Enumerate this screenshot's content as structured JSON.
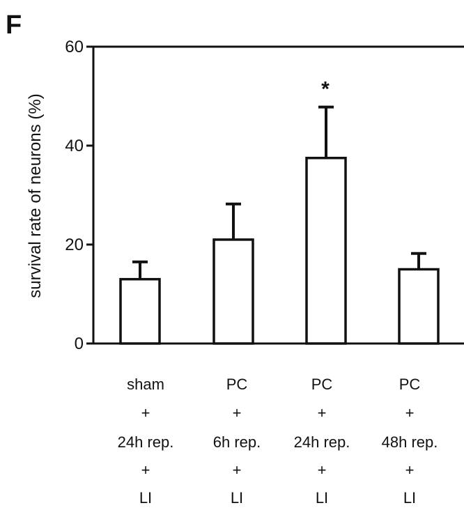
{
  "panel_label": "F",
  "chart_data": {
    "type": "bar",
    "ylabel": "survival rate of neurons (%)",
    "xlabel": "",
    "ylim": [
      0,
      60
    ],
    "yticks": [
      0,
      20,
      40,
      60
    ],
    "grid": false,
    "categories": [
      [
        "sham",
        "+",
        "24h rep.",
        "+",
        "LI"
      ],
      [
        "PC",
        "+",
        "6h rep.",
        "+",
        "LI"
      ],
      [
        "PC",
        "+",
        "24h rep.",
        "+",
        "LI"
      ],
      [
        "PC",
        "+",
        "48h rep.",
        "+",
        "LI"
      ]
    ],
    "values": [
      13,
      21,
      37.5,
      15
    ],
    "errors": [
      3.5,
      7.2,
      10.3,
      3.2
    ],
    "significance": [
      "",
      "",
      "*",
      ""
    ],
    "colors": {
      "bar_fill": "#ffffff",
      "stroke": "#111111"
    }
  }
}
